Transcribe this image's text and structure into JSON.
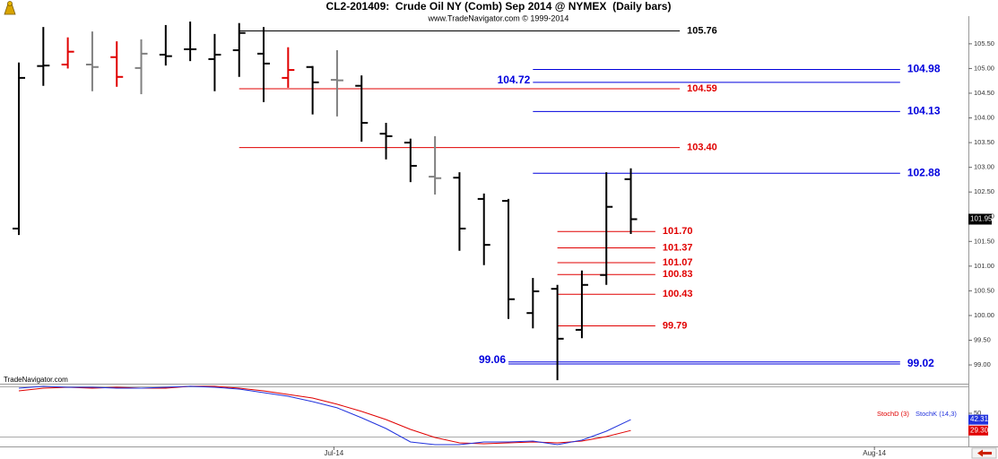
{
  "chart_data": [
    {
      "type": "ohlc",
      "title": "CL2-201409:  Crude Oil NY (Comb) Sep 2014 @ NYMEX  (Daily bars)",
      "subtitle": "www.TradeNavigator.com © 1999-2014",
      "open": [
        101.76,
        105.05,
        105.08,
        105.08,
        105.23,
        105.01,
        105.28,
        105.39,
        105.19,
        105.37,
        105.3,
        104.81,
        105.03,
        104.77,
        104.65,
        103.68,
        103.5,
        102.81,
        102.79,
        102.36,
        102.32,
        100.05,
        100.54,
        99.71,
        100.82,
        102.76
      ],
      "high": [
        105.12,
        105.84,
        105.63,
        105.75,
        105.55,
        105.59,
        105.88,
        105.95,
        105.7,
        105.92,
        105.84,
        105.43,
        105.05,
        105.37,
        104.86,
        103.9,
        103.58,
        103.63,
        102.9,
        102.47,
        102.36,
        100.76,
        100.62,
        100.91,
        102.9,
        102.98
      ],
      "low": [
        101.63,
        104.65,
        105.0,
        104.54,
        104.63,
        104.48,
        105.06,
        105.15,
        104.54,
        104.83,
        104.32,
        104.61,
        104.07,
        104.03,
        103.52,
        103.16,
        102.7,
        102.45,
        101.31,
        101.02,
        99.93,
        99.74,
        98.69,
        99.54,
        100.62,
        101.65
      ],
      "close": [
        104.81,
        105.06,
        105.34,
        105.03,
        104.83,
        105.3,
        105.25,
        105.39,
        105.28,
        105.72,
        105.1,
        104.97,
        104.72,
        104.76,
        103.9,
        103.63,
        103.03,
        102.78,
        101.76,
        101.43,
        100.33,
        100.49,
        99.53,
        100.62,
        102.2,
        101.95
      ],
      "colors": [
        "#000000",
        "#000000",
        "#e00000",
        "#808080",
        "#e00000",
        "#808080",
        "#000000",
        "#000000",
        "#000000",
        "#000000",
        "#000000",
        "#e00000",
        "#000000",
        "#808080",
        "#000000",
        "#000000",
        "#000000",
        "#808080",
        "#000000",
        "#000000",
        "#000000",
        "#000000",
        "#000000",
        "#000000",
        "#000000",
        "#000000"
      ],
      "ylim": [
        98.62,
        106.06
      ],
      "yticks": [
        {
          "value": 99,
          "label": "99.00"
        },
        {
          "value": 99.5,
          "label": "99.50"
        },
        {
          "value": 100,
          "label": "100.00"
        },
        {
          "value": 100.5,
          "label": "100.50"
        },
        {
          "value": 101,
          "label": "101.00"
        },
        {
          "value": 101.5,
          "label": "101.50"
        },
        {
          "value": 102,
          "label": "102.00"
        },
        {
          "value": 102.5,
          "label": "102.50"
        },
        {
          "value": 103,
          "label": "103.00"
        },
        {
          "value": 103.5,
          "label": "103.50"
        },
        {
          "value": 104,
          "label": "104.00"
        },
        {
          "value": 104.5,
          "label": "104.50"
        },
        {
          "value": 105,
          "label": "105.00"
        },
        {
          "value": 105.5,
          "label": "105.50"
        }
      ],
      "levels": {
        "values": [
          105.76,
          104.98,
          104.72,
          104.59,
          104.13,
          103.4,
          102.88,
          101.7,
          101.37,
          101.07,
          100.83,
          100.43,
          99.79,
          99.06,
          99.02
        ],
        "value_labels": [
          "105.76",
          "104.98",
          "104.72",
          "104.59",
          "104.13",
          "103.40",
          "102.88",
          "101.70",
          "101.37",
          "101.07",
          "100.83",
          "100.43",
          "99.79",
          "99.06",
          "99.02"
        ],
        "colors": [
          "#000000",
          "#0000dd",
          "#0000dd",
          "#e00000",
          "#0000dd",
          "#e00000",
          "#0000dd",
          "#e00000",
          "#e00000",
          "#e00000",
          "#e00000",
          "#e00000",
          "#e00000",
          "#0000dd",
          "#0000dd"
        ]
      }
    },
    {
      "type": "line",
      "annotation": "TradeNavigator.com",
      "series": [
        {
          "name": "StochD (3)",
          "color": "#e00000",
          "last_value_label": "29.30",
          "values": [
            76.9,
            80.1,
            81.2,
            80.1,
            81.2,
            80.1,
            80.1,
            82.3,
            82.3,
            80.1,
            76.9,
            72.6,
            68.3,
            60.8,
            52.2,
            42.5,
            30.6,
            21.0,
            14.5,
            13.4,
            14.5,
            15.6,
            14.5,
            16.7,
            22.0,
            29.3
          ]
        },
        {
          "name": "StochK (14,3)",
          "color": "#2233dd",
          "values": [
            80.1,
            82.3,
            81.2,
            81.2,
            80.1,
            80.1,
            81.2,
            82.3,
            81.2,
            79.0,
            74.7,
            70.4,
            64.0,
            56.5,
            44.6,
            31.7,
            15.6,
            12.4,
            12.4,
            15.6,
            15.6,
            16.7,
            12.4,
            17.7,
            28.5,
            42.31
          ]
        }
      ],
      "ylim": [
        10.2,
        83.3
      ],
      "yticks": [
        50
      ],
      "xlim": [
        -0.77,
        38.79
      ],
      "xticks": [
        {
          "value": 12.87,
          "label": "Jul-14"
        },
        {
          "value": 34.95,
          "label": "Aug-14"
        }
      ]
    }
  ]
}
